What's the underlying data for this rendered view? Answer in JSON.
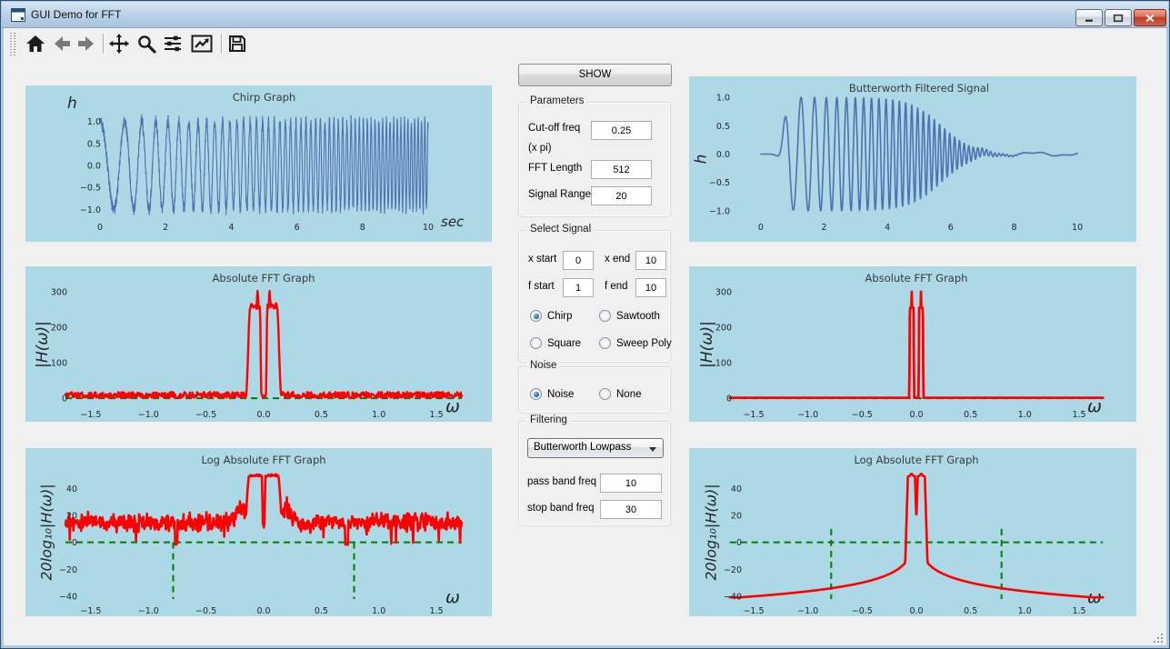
{
  "window": {
    "title": "GUI Demo for FFT"
  },
  "toolbar": {
    "buttons": [
      "home",
      "back",
      "forward",
      "pan",
      "zoom-to-rect",
      "configure-subplots",
      "edit-axes",
      "save"
    ]
  },
  "panel": {
    "show_button": "SHOW",
    "parameters": {
      "title": "Parameters",
      "fields": [
        {
          "label": "Cut-off freq",
          "label2": "(x  pi)",
          "value": "0.25"
        },
        {
          "label": "FFT Length",
          "value": "512"
        },
        {
          "label": "Signal Range",
          "value": "20"
        }
      ]
    },
    "select_signal": {
      "title": "Select Signal",
      "fields": [
        {
          "label": "x start",
          "value": "0"
        },
        {
          "label": "x end",
          "value": "10"
        },
        {
          "label": "f start",
          "value": "1"
        },
        {
          "label": "f end",
          "value": "10"
        }
      ],
      "options": [
        {
          "label": "Chirp",
          "selected": true
        },
        {
          "label": "Sawtooth",
          "selected": false
        },
        {
          "label": "Square",
          "selected": false
        },
        {
          "label": "Sweep Poly",
          "selected": false
        }
      ]
    },
    "noise": {
      "title": "Noise",
      "options": [
        {
          "label": "Noise",
          "selected": true
        },
        {
          "label": "None",
          "selected": false
        }
      ]
    },
    "filtering": {
      "title": "Filtering",
      "dropdown_value": "Butterworth Lowpass",
      "fields": [
        {
          "label": "pass band freq",
          "value": "10"
        },
        {
          "label": "stop band freq",
          "value": "30"
        }
      ]
    }
  },
  "colors": {
    "figure_bg": "#ADD8E6",
    "window_bg": "#F0F0F0",
    "titlebar": "#BDD4E9",
    "signal_line": "#4C72B0",
    "fft_line": "#FF0000",
    "guide_line": "#008000",
    "plot_text": "#262626"
  },
  "chart_data": [
    {
      "id": "chirp",
      "type": "line",
      "title": "Chirp Graph",
      "xlabel": "sec",
      "ylabel": "h",
      "xlim": [
        -0.5,
        10.5
      ],
      "ylim": [
        -1.2,
        1.2
      ],
      "xticks": {
        "values": [
          0,
          2,
          4,
          6,
          8,
          10
        ],
        "labels": [
          "0",
          "2",
          "4",
          "6",
          "8",
          "10"
        ]
      },
      "yticks": {
        "values": [
          1,
          0.5,
          0,
          -0.5,
          -1
        ],
        "labels": [
          "1.0",
          "0.5",
          "0.0",
          "−0.5",
          "−1.0"
        ]
      },
      "series": [
        {
          "name": "noisy chirp f 1→10 Hz over 0–10 s, amplitude ±1 plus noise",
          "gen": "chirp",
          "color": "#4C72B0",
          "width": 1.1,
          "params": {
            "t": [
              0,
              10
            ],
            "f_start": 1,
            "f_end": 10,
            "amplitude": 1,
            "noise": 0.24,
            "points": 2300,
            "seed": 9
          }
        }
      ],
      "guides": []
    },
    {
      "id": "abs-fft",
      "type": "line",
      "title": "Absolute FFT Graph",
      "xlabel": "ω",
      "ylabel": "|H(ω)|",
      "xlim": [
        -1.76,
        1.76
      ],
      "ylim": [
        -20,
        315
      ],
      "xticks": {
        "values": [
          -1.5,
          -1.0,
          -0.5,
          0.0,
          0.5,
          1.0,
          1.5
        ],
        "labels": [
          "−1.5",
          "−1.0",
          "−0.5",
          "0.0",
          "0.5",
          "1.0",
          "1.5"
        ]
      },
      "yticks": {
        "values": [
          0,
          100,
          200,
          300
        ],
        "labels": [
          "0",
          "100",
          "200",
          "300"
        ]
      },
      "series": [
        {
          "name": "abs FFT of noisy chirp: noise floor 2–18, twin peaks ≈300 at ω≈±0.05, band ±0.16, notch to ~0 at ω=0",
          "gen": "fft_abs",
          "color": "#FF0000",
          "width": 2.4,
          "params": {
            "omega": [
              -1.72,
              1.72
            ],
            "peak": 300,
            "band": [
              0.02,
              0.16
            ],
            "noise_floor": [
              2,
              18
            ],
            "points": 760,
            "seed": 31
          }
        }
      ],
      "guides": [
        {
          "type": "hline",
          "y": 0,
          "x": [
            -1.72,
            1.72
          ],
          "color": "#008000"
        }
      ]
    },
    {
      "id": "log-abs-fft",
      "type": "line",
      "title": "Log Absolute FFT Graph",
      "xlabel": "ω",
      "ylabel": "20log₁₀|H(ω)|",
      "xlim": [
        -1.76,
        1.76
      ],
      "ylim": [
        -44,
        55
      ],
      "xticks": {
        "values": [
          -1.5,
          -1.0,
          -0.5,
          0.0,
          0.5,
          1.0,
          1.5
        ],
        "labels": [
          "−1.5",
          "−1.0",
          "−0.5",
          "0.0",
          "0.5",
          "1.0",
          "1.5"
        ]
      },
      "yticks": {
        "values": [
          -40,
          -20,
          0,
          20,
          40
        ],
        "labels": [
          "−40",
          "−20",
          "0",
          "20",
          "40"
        ]
      },
      "series": [
        {
          "name": "20·log10 |H|: noise floor ≈15 dB, plateau ≈49 dB within ±0.17, dips to −5 dB near ±0.75, centre notch ≈20 dB",
          "gen": "fft_log",
          "color": "#FF0000",
          "width": 2.6,
          "params": {
            "omega": [
              -1.72,
              1.72
            ],
            "plateau_db": 49,
            "floor_db": 15,
            "notch_db": 20,
            "dips": [
              -0.76,
              0.72
            ],
            "points": 760,
            "seed": 47
          }
        }
      ],
      "guides": [
        {
          "type": "hline",
          "y": 0,
          "x": [
            -1.72,
            1.72
          ],
          "color": "#008000"
        },
        {
          "type": "vline",
          "x": -0.7854,
          "y": [
            0,
            -42
          ],
          "color": "#008000"
        },
        {
          "type": "vline",
          "x": 0.7854,
          "y": [
            0,
            -42
          ],
          "color": "#008000"
        }
      ]
    },
    {
      "id": "filtered-signal",
      "type": "line",
      "title": "Butterworth Filtered Signal",
      "xlabel": "",
      "ylabel": "h",
      "xlim": [
        -0.6,
        10.6
      ],
      "ylim": [
        -1.13,
        1.13
      ],
      "xticks": {
        "values": [
          0,
          2,
          4,
          6,
          8,
          10
        ],
        "labels": [
          "0",
          "2",
          "4",
          "6",
          "8",
          "10"
        ]
      },
      "yticks": {
        "values": [
          1,
          0.5,
          0,
          -0.5,
          -1
        ],
        "labels": [
          "1.0",
          "0.5",
          "0.0",
          "−0.5",
          "−1.0"
        ]
      },
      "series": [
        {
          "name": "lowpass-filtered chirp: flat to t≈0.5, amplitude ≈1 until t≈5, decays to small ripple by t≈7",
          "gen": "filtered_chirp",
          "color": "#4C72B0",
          "width": 1.6,
          "params": {
            "t": [
              0,
              10
            ],
            "f_start": 1,
            "f_end": 10,
            "rise": 0.72,
            "decay": 5.7,
            "ripple": 0.03,
            "points": 1700,
            "seed": 3
          }
        }
      ],
      "guides": []
    },
    {
      "id": "abs-fft-filtered",
      "type": "line",
      "title": "Absolute FFT Graph",
      "xlabel": "ω",
      "ylabel": "|H(ω)|",
      "xlim": [
        -1.76,
        1.76
      ],
      "ylim": [
        -20,
        315
      ],
      "xticks": {
        "values": [
          -1.5,
          -1.0,
          -0.5,
          0.0,
          0.5,
          1.0,
          1.5
        ],
        "labels": [
          "−1.5",
          "−1.0",
          "−0.5",
          "0.0",
          "0.5",
          "1.0",
          "1.5"
        ]
      },
      "yticks": {
        "values": [
          0,
          100,
          200,
          300
        ],
        "labels": [
          "0",
          "100",
          "200",
          "300"
        ]
      },
      "series": [
        {
          "name": "abs FFT after Butterworth lowpass: flat ≈0 floor, narrow twin spikes to 300 at ω≈±0.043, shoulders ≈255, zero at ω=0",
          "gen": "fft_abs_clean",
          "color": "#FF0000",
          "width": 2.8,
          "params": {
            "omega": [
              -1.72,
              1.72
            ],
            "peak": 300,
            "plateau": 255,
            "band": [
              0.02,
              0.066
            ],
            "spike_at": 0.043,
            "points": 1000,
            "seed": 5
          }
        }
      ],
      "guides": [
        {
          "type": "hline",
          "y": 0,
          "x": [
            -1.72,
            1.72
          ],
          "color": "#008000"
        }
      ]
    },
    {
      "id": "log-abs-fft-filtered",
      "type": "line",
      "title": "Log Absolute FFT Graph",
      "xlabel": "ω",
      "ylabel": "20log₁₀|H(ω)|",
      "xlim": [
        -1.76,
        1.76
      ],
      "ylim": [
        -44,
        55
      ],
      "xticks": {
        "values": [
          -1.5,
          -1.0,
          -0.5,
          0.0,
          0.5,
          1.0,
          1.5
        ],
        "labels": [
          "−1.5",
          "−1.0",
          "−0.5",
          "0.0",
          "0.5",
          "1.0",
          "1.5"
        ]
      },
      "yticks": {
        "values": [
          -40,
          -20,
          0,
          20,
          40
        ],
        "labels": [
          "−40",
          "−20",
          "0",
          "20",
          "40"
        ]
      },
      "series": [
        {
          "name": "smooth filtered log spectrum: −40 dB at |ω|=1.5 rising to plateau ≈49 dB inside ±0.08, centre notch to 16 dB",
          "gen": "fft_log_clean",
          "color": "#FF0000",
          "width": 2.6,
          "params": {
            "omega": [
              -1.72,
              1.72
            ],
            "plateau_db": 49,
            "notch_db": 16,
            "cutoff": 0.7854,
            "stop_db": -40,
            "points": 900,
            "seed": 7
          }
        }
      ],
      "guides": [
        {
          "type": "hline",
          "y": 0,
          "x": [
            -1.72,
            1.72
          ],
          "color": "#008000"
        },
        {
          "type": "vline",
          "x": -0.7854,
          "y": [
            10,
            -42
          ],
          "color": "#008000"
        },
        {
          "type": "vline",
          "x": 0.7854,
          "y": [
            10,
            -42
          ],
          "color": "#008000"
        }
      ]
    }
  ]
}
